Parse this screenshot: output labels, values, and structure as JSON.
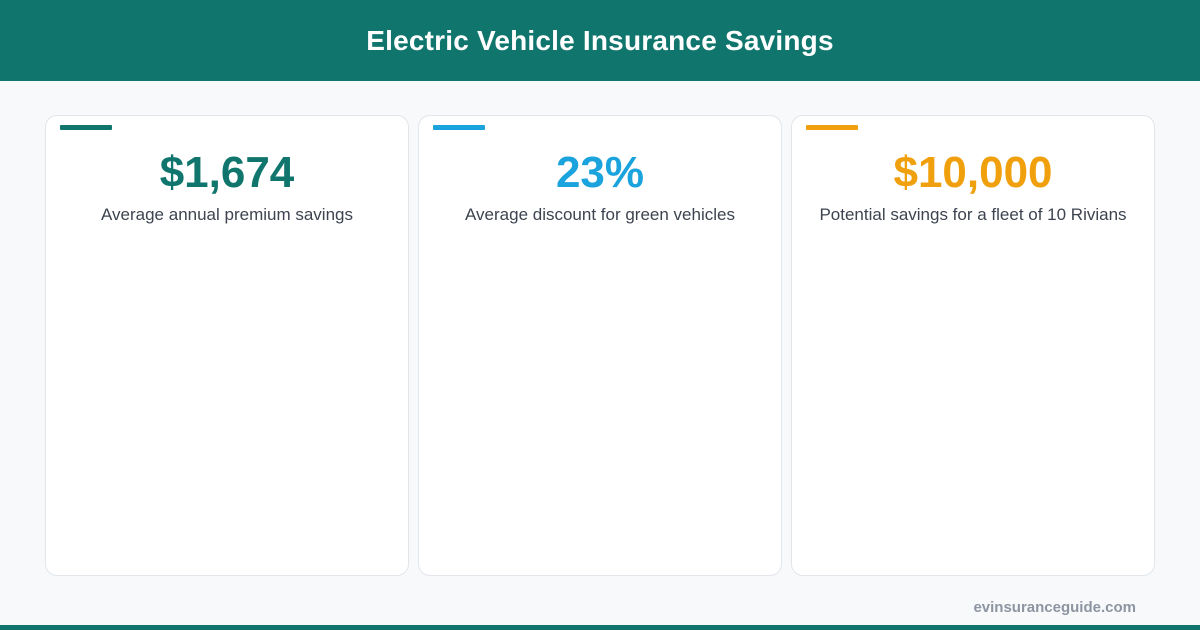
{
  "header": {
    "title": "Electric Vehicle Insurance Savings"
  },
  "colors": {
    "brand": "#10766d",
    "teal": "#10766d",
    "blue": "#1aa3dc",
    "amber": "#f0a00c",
    "background": "#f7f9fb",
    "muted": "#8d95a2"
  },
  "cards": [
    {
      "value": "$1,674",
      "label": "Average annual premium savings",
      "color": "#10766d"
    },
    {
      "value": "23%",
      "label": "Average discount for green vehicles",
      "color": "#1aa3dc"
    },
    {
      "value": "$10,000",
      "label": "Potential savings for a fleet of 10 Rivians",
      "color": "#f0a00c"
    }
  ],
  "footer": {
    "site": "evinsuranceguide.com"
  }
}
